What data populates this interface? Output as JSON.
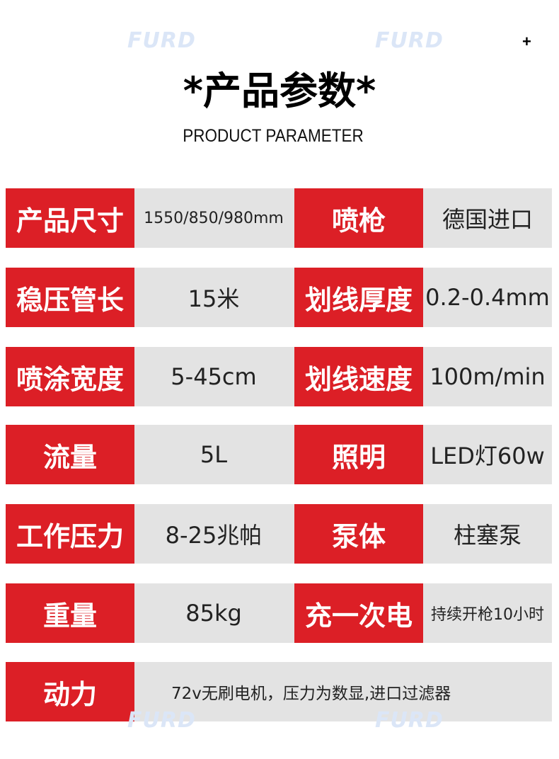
{
  "watermark": "FURD",
  "title": "*产品参数*",
  "subtitle": "PRODUCT PARAMETER",
  "plus_icon": "+",
  "rows": [
    {
      "label1": "产品尺寸",
      "value1": "1550/850/980mm",
      "label2": "喷枪",
      "value2": "德国进口"
    },
    {
      "label1": "稳压管长",
      "value1": "15米",
      "label2": "划线厚度",
      "value2": "0.2-0.4mm"
    },
    {
      "label1": "喷涂宽度",
      "value1": "5-45cm",
      "label2": "划线速度",
      "value2": "100m/min"
    },
    {
      "label1": "流量",
      "value1": "5L",
      "label2": "照明",
      "value2": "LED灯60w"
    },
    {
      "label1": "工作压力",
      "value1": "8-25兆帕",
      "label2": "泵体",
      "value2": "柱塞泵"
    },
    {
      "label1": "重量",
      "value1": "85kg",
      "label2": "充一次电",
      "value2": "持续开枪10小时"
    }
  ],
  "last_row": {
    "label": "动力",
    "value": "72v无刷电机，压力为数显,进口过滤器"
  },
  "colors": {
    "label_bg": "#dc1f26",
    "value_bg": "#e3e3e3",
    "watermark": "#dbe6f7"
  }
}
